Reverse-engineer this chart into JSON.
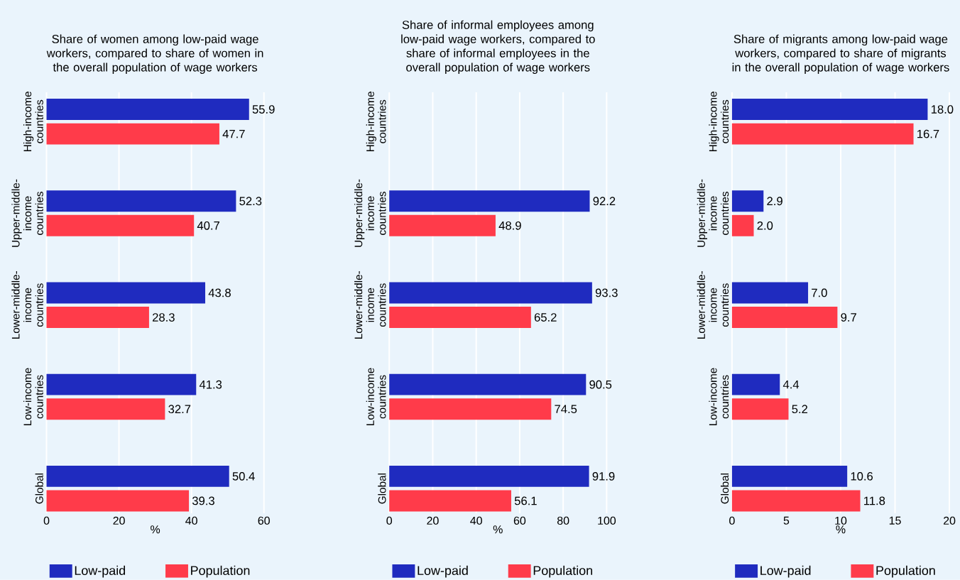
{
  "chart_data": [
    {
      "type": "bar",
      "orientation": "horizontal",
      "title": "Share of women among low-paid wage workers, compared to share of women in the overall population of wage workers",
      "xlabel": "%",
      "categories": [
        "High-income countries",
        "Upper-middle-income countries",
        "Lower-middle-income countries",
        "Low-income countries",
        "Global"
      ],
      "series": [
        {
          "name": "Low-paid",
          "color": "#1f2bbf",
          "values": [
            55.9,
            52.3,
            43.8,
            41.3,
            50.4
          ]
        },
        {
          "name": "Population",
          "color": "#ff3b4a",
          "values": [
            47.7,
            40.7,
            28.3,
            32.7,
            39.3
          ]
        }
      ],
      "xlim": [
        0,
        60
      ],
      "xticks": [
        0,
        20,
        40,
        60
      ],
      "grid": "x",
      "legend": "bottom",
      "data_labels": true
    },
    {
      "type": "bar",
      "orientation": "horizontal",
      "title": "Share of informal employees among low-paid wage workers, compared to share of informal employees in the overall population of wage workers",
      "xlabel": "%",
      "categories": [
        "High-income countries",
        "Upper-middle-income countries",
        "Lower-middle-income countries",
        "Low-income countries",
        "Global"
      ],
      "series": [
        {
          "name": "Low-paid",
          "color": "#1f2bbf",
          "values": [
            null,
            92.2,
            93.3,
            90.5,
            91.9
          ]
        },
        {
          "name": "Population",
          "color": "#ff3b4a",
          "values": [
            null,
            48.9,
            65.2,
            74.5,
            56.1
          ]
        }
      ],
      "xlim": [
        0,
        100
      ],
      "xticks": [
        0,
        20,
        40,
        60,
        80,
        100
      ],
      "grid": "x",
      "legend": "bottom",
      "data_labels": true
    },
    {
      "type": "bar",
      "orientation": "horizontal",
      "title": "Share of migrants among low-paid wage workers, compared to share of migrants in the overall population of wage workers",
      "xlabel": "%",
      "categories": [
        "High-income countries",
        "Upper-middle-income countries",
        "Lower-middle-income countries",
        "Low-income countries",
        "Global"
      ],
      "series": [
        {
          "name": "Low-paid",
          "color": "#1f2bbf",
          "values": [
            18.0,
            2.9,
            7.0,
            4.4,
            10.6
          ],
          "value_labels": [
            "18.0",
            "2.9",
            "7.0",
            "4.4",
            "10.6"
          ]
        },
        {
          "name": "Population",
          "color": "#ff3b4a",
          "values": [
            16.7,
            2.0,
            9.7,
            5.2,
            11.8
          ],
          "value_labels": [
            "16.7",
            "2.0",
            "9.7",
            "5.2",
            "11.8"
          ]
        }
      ],
      "xlim": [
        0,
        20
      ],
      "xticks": [
        0,
        5,
        10,
        15,
        20
      ],
      "grid": "x",
      "legend": "bottom"
    }
  ]
}
